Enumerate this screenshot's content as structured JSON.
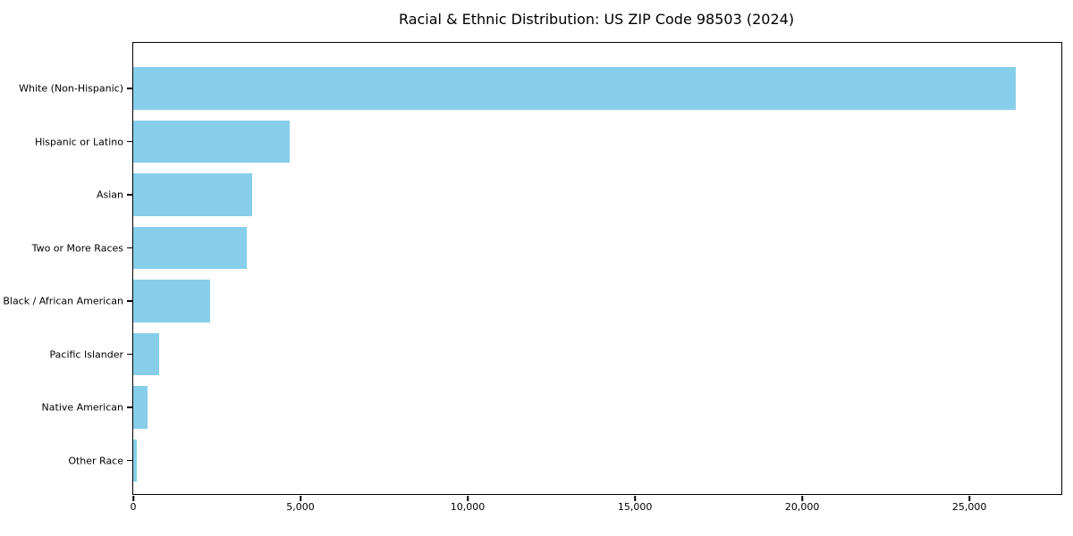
{
  "title": "Racial & Ethnic Distribution: US ZIP Code 98503 (2024)",
  "colors": {
    "bar": "#87CEEB",
    "axis": "#000000",
    "text": "#000000",
    "background": "#ffffff"
  },
  "chart_data": {
    "type": "bar",
    "orientation": "horizontal",
    "title": "Racial & Ethnic Distribution: US ZIP Code 98503 (2024)",
    "categories": [
      "White (Non-Hispanic)",
      "Hispanic or Latino",
      "Asian",
      "Two or More Races",
      "Black / African American",
      "Pacific Islander",
      "Native American",
      "Other Race"
    ],
    "values": [
      26390,
      4680,
      3555,
      3395,
      2290,
      770,
      430,
      95
    ],
    "xlabel": "",
    "ylabel": "",
    "xlim": [
      0,
      27750
    ],
    "xticks": [
      0,
      5000,
      10000,
      15000,
      20000,
      25000
    ],
    "xtick_labels": [
      "0",
      "5,000",
      "10,000",
      "15,000",
      "20,000",
      "25,000"
    ],
    "bar_color": "#87CEEB",
    "grid": false,
    "legend_position": "none"
  }
}
